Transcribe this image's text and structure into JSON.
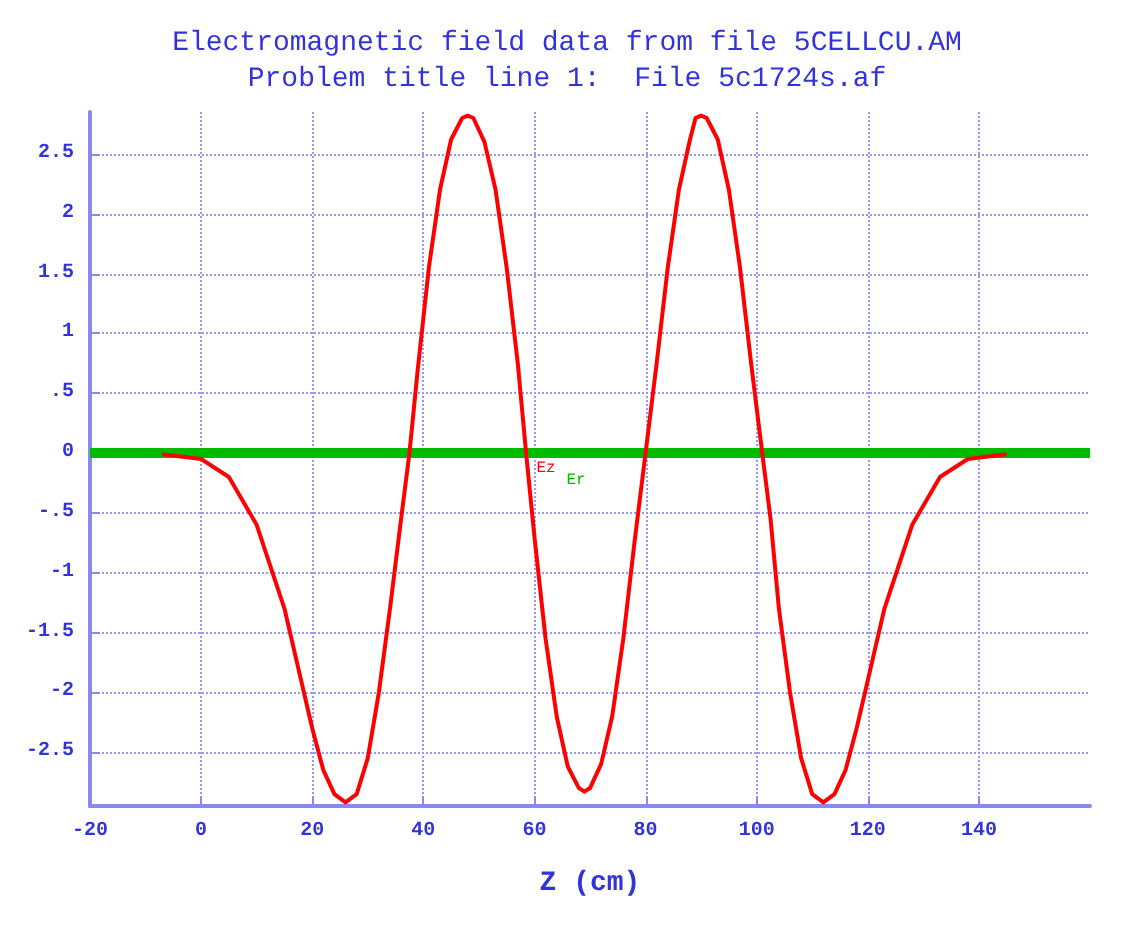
{
  "chart_data": {
    "type": "line",
    "title": "Electromagnetic field data from file 5CELLCU.AM",
    "subtitle": "Problem title line 1:  File 5c1724s.af",
    "xlabel": "Z (cm)",
    "xlim": [
      -20,
      160
    ],
    "xticks": [
      -20,
      0,
      20,
      40,
      60,
      80,
      100,
      120,
      140
    ],
    "ylim": [
      -2.95,
      2.85
    ],
    "yticks": [
      {
        "value": -2.5,
        "label": "-2.5"
      },
      -2,
      {
        "value": -1.5,
        "label": "-1.5"
      },
      -1,
      {
        "value": -0.5,
        "label": "-.5"
      },
      0,
      {
        "value": 0.5,
        "label": ".5"
      },
      1,
      {
        "value": 1.5,
        "label": "1.5"
      },
      2,
      {
        "value": 2.5,
        "label": "2.5"
      }
    ],
    "grid": true,
    "legend": false,
    "marker": "none",
    "line_style": "solid",
    "series": [
      {
        "name": "Ez",
        "color": "#ff0000",
        "x": [
          -7,
          0,
          5,
          10,
          15,
          18,
          20,
          22,
          24,
          26,
          28,
          30,
          32,
          34,
          36,
          37.5,
          39,
          41,
          43,
          45,
          47,
          48,
          49,
          51,
          53,
          55,
          57,
          58.5,
          60,
          62,
          64,
          66,
          68,
          69,
          70,
          72,
          74,
          76,
          78,
          80,
          82,
          84,
          86,
          88,
          89,
          90,
          91,
          93,
          95,
          97,
          99,
          101,
          102.5,
          104,
          106,
          108,
          110,
          112,
          114,
          116,
          118,
          120,
          123,
          128,
          133,
          138,
          145
        ],
        "values": [
          -0.01,
          -0.05,
          -0.2,
          -0.6,
          -1.3,
          -1.9,
          -2.3,
          -2.65,
          -2.85,
          -2.92,
          -2.85,
          -2.55,
          -2,
          -1.3,
          -0.55,
          0,
          0.7,
          1.55,
          2.2,
          2.62,
          2.8,
          2.82,
          2.8,
          2.6,
          2.2,
          1.55,
          0.75,
          0,
          -0.7,
          -1.55,
          -2.2,
          -2.62,
          -2.8,
          -2.83,
          -2.8,
          -2.6,
          -2.2,
          -1.55,
          -0.75,
          0,
          0.75,
          1.55,
          2.2,
          2.62,
          2.8,
          2.82,
          2.8,
          2.62,
          2.2,
          1.55,
          0.75,
          0,
          -0.55,
          -1.3,
          -2,
          -2.55,
          -2.85,
          -2.92,
          -2.85,
          -2.65,
          -2.3,
          -1.9,
          -1.3,
          -0.6,
          -0.2,
          -0.05,
          -0.01
        ]
      },
      {
        "name": "Er",
        "color": "#00bb00",
        "x": [
          -20,
          160
        ],
        "values": [
          0,
          0
        ]
      }
    ]
  }
}
